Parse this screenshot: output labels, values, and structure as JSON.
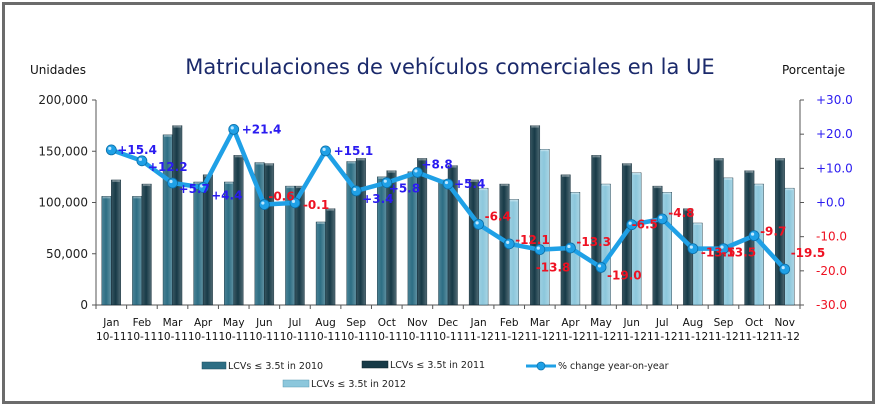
{
  "chart_data": {
    "type": "bar",
    "title": "Matriculaciones de vehículos comerciales en la UE",
    "ylabel": "Unidades",
    "y2label": "Porcentaje",
    "ylim": [
      0,
      200000
    ],
    "y2lim": [
      -30,
      30
    ],
    "yticks": [
      "0",
      "50,000",
      "100,000",
      "150,000",
      "200,000"
    ],
    "y2ticks": [
      "-30.0",
      "-20.0",
      "-10.0",
      "+0.0",
      "+10.0",
      "+20.0",
      "+30.0"
    ],
    "grid": false,
    "legend_position": "bottom",
    "categories": [
      {
        "month": "Jan",
        "period": "10-11"
      },
      {
        "month": "Feb",
        "period": "10-11"
      },
      {
        "month": "Mar",
        "period": "10-11"
      },
      {
        "month": "Apr",
        "period": "10-11"
      },
      {
        "month": "May",
        "period": "10-11"
      },
      {
        "month": "Jun",
        "period": "10-11"
      },
      {
        "month": "Jul",
        "period": "10-11"
      },
      {
        "month": "Aug",
        "period": "10-11"
      },
      {
        "month": "Sep",
        "period": "10-11"
      },
      {
        "month": "Oct",
        "period": "10-11"
      },
      {
        "month": "Nov",
        "period": "10-11"
      },
      {
        "month": "Dec",
        "period": "10-11"
      },
      {
        "month": "Jan",
        "period": "11-12"
      },
      {
        "month": "Feb",
        "period": "11-12"
      },
      {
        "month": "Mar",
        "period": "11-12"
      },
      {
        "month": "Apr",
        "period": "11-12"
      },
      {
        "month": "May",
        "period": "11-12"
      },
      {
        "month": "Jun",
        "period": "11-12"
      },
      {
        "month": "Jul",
        "period": "11-12"
      },
      {
        "month": "Aug",
        "period": "11-12"
      },
      {
        "month": "Sep",
        "period": "11-12"
      },
      {
        "month": "Oct",
        "period": "11-12"
      },
      {
        "month": "Nov",
        "period": "11-12"
      }
    ],
    "series": [
      {
        "name": "LCVs ≤ 3.5t in 2010",
        "kind": "bar",
        "color": "#2d6e84",
        "values": [
          106000,
          106000,
          166000,
          120000,
          120000,
          139000,
          116000,
          81000,
          140000,
          125000,
          130000,
          122000,
          null,
          null,
          null,
          null,
          null,
          null,
          null,
          null,
          null,
          null,
          null
        ]
      },
      {
        "name": "LCVs ≤ 3.5t in 2011",
        "kind": "bar",
        "color": "#173a47",
        "values": [
          122000,
          118000,
          175000,
          127000,
          146000,
          138000,
          116000,
          94000,
          143000,
          131000,
          143000,
          136000,
          122000,
          118000,
          175000,
          127000,
          146000,
          138000,
          116000,
          94000,
          143000,
          131000,
          143000
        ]
      },
      {
        "name": "LCVs ≤ 3.5t in 2012",
        "kind": "bar",
        "color": "#8cc7dc",
        "values": [
          null,
          null,
          null,
          null,
          null,
          null,
          null,
          null,
          null,
          null,
          null,
          null,
          114000,
          103000,
          152000,
          110000,
          118000,
          129000,
          110000,
          80000,
          124000,
          118000,
          114000
        ]
      },
      {
        "name": "% change year-on-year",
        "kind": "line",
        "axis": "right",
        "color": "#1fa0e6",
        "values": [
          15.4,
          12.2,
          5.7,
          4.4,
          21.4,
          -0.6,
          -0.1,
          15.1,
          3.4,
          5.8,
          8.8,
          5.4,
          -6.4,
          -12.1,
          -13.8,
          -13.3,
          -19.0,
          -6.5,
          -4.8,
          -13.5,
          -13.5,
          -9.7,
          -19.5
        ],
        "labels": [
          "+15.4",
          "+12.2",
          "+5.7",
          "+4.4",
          "+21.4",
          "-0.6",
          "-0.1",
          "+15.1",
          "+3.4",
          "+5.8",
          "+8.8",
          "+5.4",
          "-6.4",
          "-12.1",
          "-13.8",
          "-13.3",
          "-19.0",
          "-6.5",
          "-4.8",
          "-13.5",
          "-13.5",
          "-9.7",
          "-19.5"
        ]
      }
    ],
    "colors": {
      "positive_label": "#2a1bf0",
      "negative_label": "#ee1122",
      "title": "#1b2a6b"
    }
  },
  "legend": {
    "items": [
      {
        "label": "LCVs ≤ 3.5t in 2010"
      },
      {
        "label": "LCVs ≤ 3.5t in 2011"
      },
      {
        "label": "% change year-on-year"
      },
      {
        "label": "LCVs ≤ 3.5t in 2012"
      }
    ]
  }
}
